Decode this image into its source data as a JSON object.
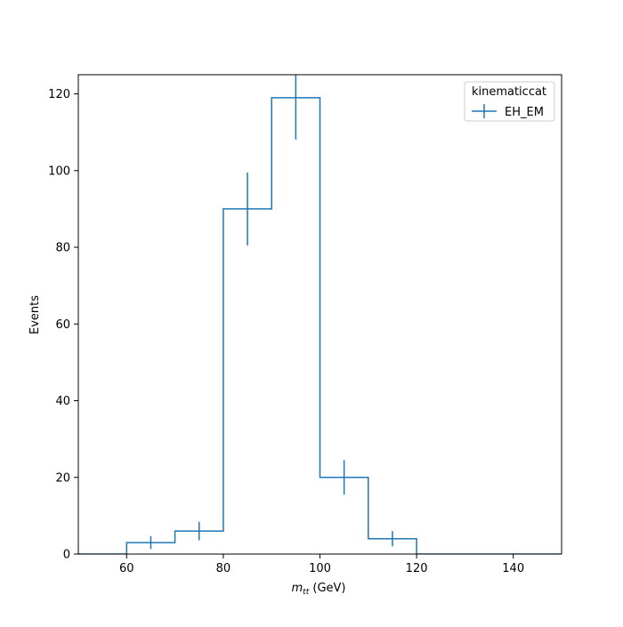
{
  "chart_data": {
    "type": "step-histogram",
    "xlabel_math": "m",
    "xlabel_sub": "tt",
    "xlabel_unit": " (GeV)",
    "ylabel": "Events",
    "xlim": [
      50,
      150
    ],
    "ylim": [
      0,
      125
    ],
    "xticks": [
      60,
      80,
      100,
      120,
      140
    ],
    "yticks": [
      0,
      20,
      40,
      60,
      80,
      100,
      120
    ],
    "bin_edges": [
      50,
      60,
      70,
      80,
      90,
      100,
      110,
      120,
      130,
      140,
      150
    ],
    "series": [
      {
        "name": "EH_EM",
        "values": [
          0,
          3,
          6,
          90,
          119,
          20,
          4,
          0,
          0,
          0
        ],
        "errors": [
          0,
          1.7,
          2.4,
          9.5,
          10.9,
          4.5,
          2.0,
          0,
          0,
          0
        ],
        "color": "#1f77b4"
      }
    ],
    "legend": {
      "title": "kinematiccat",
      "position": "top-right"
    },
    "grid": false
  }
}
